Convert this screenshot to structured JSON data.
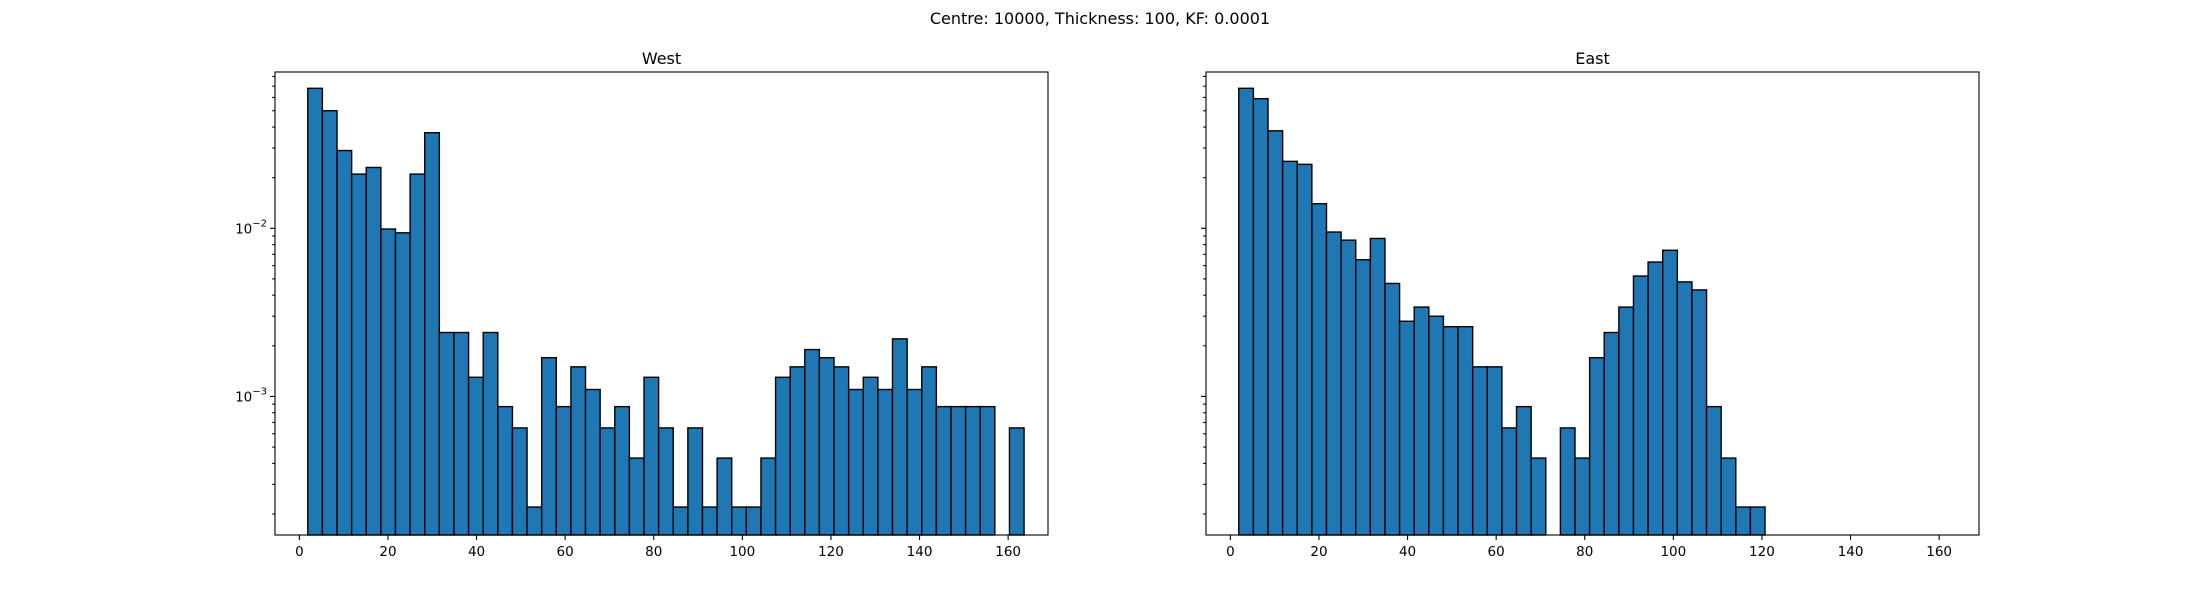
{
  "figure": {
    "suptitle": "Centre: 10000, Thickness: 100, KF: 0.0001"
  },
  "chart_data": [
    {
      "type": "bar",
      "title": "West",
      "xlabel": "",
      "ylabel": "",
      "yscale": "log",
      "bar_color": "#1f77b4",
      "edge_color": "#000000",
      "xlim": [
        -5.5,
        169
      ],
      "ylim": [
        0.00015,
        0.085
      ],
      "xticks": [
        0,
        20,
        40,
        60,
        80,
        100,
        120,
        140,
        160
      ],
      "yticks": [
        {
          "base": "10",
          "exp": "−2",
          "value": 0.01
        },
        {
          "base": "10",
          "exp": "−3",
          "value": 0.001
        }
      ],
      "show_y_tick_labels": true,
      "bin_width": 3.3,
      "bins_start": 1.9,
      "values": [
        0.068,
        0.05,
        0.029,
        0.021,
        0.023,
        0.0099,
        0.0094,
        0.021,
        0.037,
        0.0024,
        0.0024,
        0.0013,
        0.0024,
        0.00087,
        0.00065,
        0.00022,
        0.0017,
        0.00087,
        0.0015,
        0.0011,
        0.00065,
        0.00087,
        0.00043,
        0.0013,
        0.00065,
        0.00022,
        0.00065,
        0.00022,
        0.00043,
        0.00022,
        0.00022,
        0.00043,
        0.0013,
        0.0015,
        0.0019,
        0.0017,
        0.0015,
        0.0011,
        0.0013,
        0.0011,
        0.0022,
        0.0011,
        0.0015,
        0.00087,
        0.00087,
        0.00087,
        0.00087,
        0,
        0.00065
      ]
    },
    {
      "type": "bar",
      "title": "East",
      "xlabel": "",
      "ylabel": "",
      "yscale": "log",
      "bar_color": "#1f77b4",
      "edge_color": "#000000",
      "xlim": [
        -5.5,
        169
      ],
      "ylim": [
        0.00015,
        0.085
      ],
      "xticks": [
        0,
        20,
        40,
        60,
        80,
        100,
        120,
        140,
        160
      ],
      "yticks": [
        {
          "base": "10",
          "exp": "−2",
          "value": 0.01
        },
        {
          "base": "10",
          "exp": "−3",
          "value": 0.001
        }
      ],
      "show_y_tick_labels": false,
      "bin_width": 3.3,
      "bins_start": 1.9,
      "values": [
        0.068,
        0.059,
        0.038,
        0.025,
        0.024,
        0.014,
        0.0095,
        0.0085,
        0.0065,
        0.0087,
        0.0047,
        0.0028,
        0.0034,
        0.003,
        0.0026,
        0.0026,
        0.0015,
        0.0015,
        0.00065,
        0.00087,
        0.00043,
        0,
        0.00065,
        0.00043,
        0.0017,
        0.0024,
        0.0034,
        0.0052,
        0.0063,
        0.0074,
        0.0048,
        0.0043,
        0.00087,
        0.00043,
        0.00022,
        0.00022
      ]
    }
  ]
}
